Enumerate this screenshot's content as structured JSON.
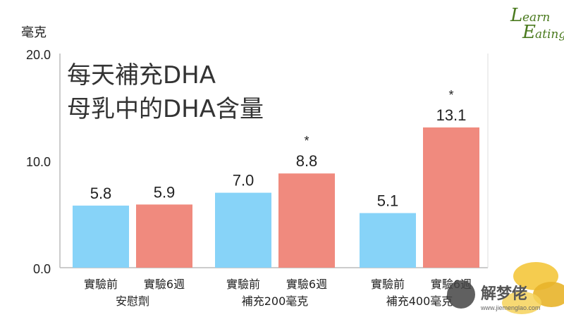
{
  "chart_data": {
    "type": "bar",
    "title_lines": [
      "每天補充DHA",
      "母乳中的DHA含量"
    ],
    "ylabel": "毫克",
    "ylim": [
      0,
      20
    ],
    "yticks": [
      "0.0",
      "10.0",
      "20.0"
    ],
    "grid": false,
    "groups": [
      {
        "name": "安慰劑",
        "bars": [
          {
            "category": "實驗前",
            "value": 5.8,
            "label": "5.8",
            "star": ""
          },
          {
            "category": "實驗6週",
            "value": 5.9,
            "label": "5.9",
            "star": ""
          }
        ]
      },
      {
        "name": "補充200毫克",
        "bars": [
          {
            "category": "實驗前",
            "value": 7.0,
            "label": "7.0",
            "star": ""
          },
          {
            "category": "實驗6週",
            "value": 8.8,
            "label": "8.8",
            "star": "*"
          }
        ]
      },
      {
        "name": "補充400毫克",
        "bars": [
          {
            "category": "實驗前",
            "value": 5.1,
            "label": "5.1",
            "star": ""
          },
          {
            "category": "實驗6週",
            "value": 13.1,
            "label": "13.1",
            "star": "*"
          }
        ]
      }
    ],
    "colors": {
      "before": "#87d3f8",
      "after": "#f08a7e",
      "axis": "#bbbbbb"
    }
  },
  "logo": {
    "line1": "earn",
    "line2": "ating",
    "cap1": "L",
    "cap2": "E"
  },
  "watermark": {
    "name": "解梦佬",
    "url": "www.jiemenglao.com"
  }
}
